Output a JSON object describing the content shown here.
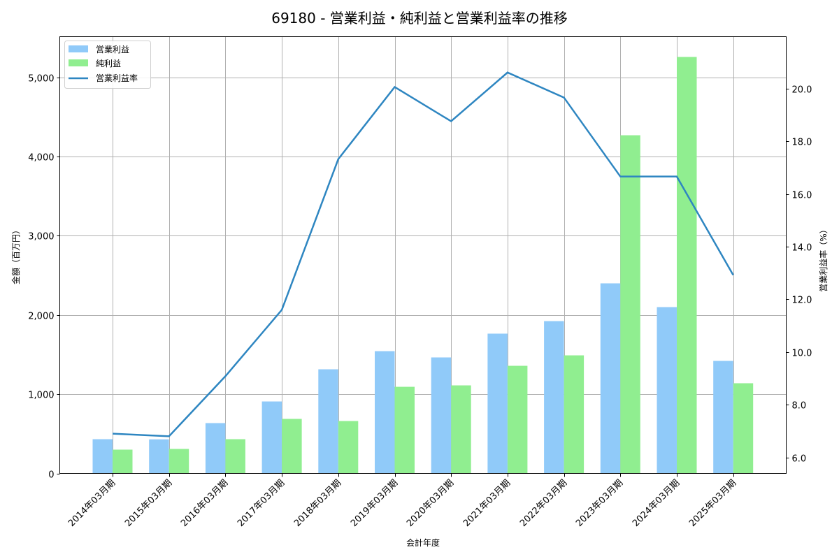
{
  "chart_data": {
    "type": "bar",
    "title": "69180 - 営業利益・純利益と営業利益率の推移",
    "xlabel": "会計年度",
    "ylabel": "金額（百万円）",
    "y2label": "営業利益率（%）",
    "categories": [
      "2014年03月期",
      "2015年03月期",
      "2016年03月期",
      "2017年03月期",
      "2018年03月期",
      "2019年03月期",
      "2020年03月期",
      "2021年03月期",
      "2022年03月期",
      "2023年03月期",
      "2024年03月期",
      "2025年03月期"
    ],
    "series": [
      {
        "name": "営業利益",
        "type": "bar",
        "axis": "left",
        "color": "#90CAF9",
        "values": [
          432,
          430,
          635,
          908,
          1314,
          1543,
          1464,
          1764,
          1922,
          2399,
          2099,
          1420
        ]
      },
      {
        "name": "純利益",
        "type": "bar",
        "axis": "left",
        "color": "#90EE90",
        "values": [
          300,
          309,
          432,
          688,
          661,
          1093,
          1111,
          1358,
          1490,
          4268,
          5256,
          1138
        ]
      },
      {
        "name": "営業利益率",
        "type": "line",
        "axis": "right",
        "color": "#2E86C1",
        "values": [
          6.9,
          6.8,
          9.08,
          11.6,
          17.32,
          20.06,
          18.76,
          20.61,
          19.66,
          16.66,
          16.66,
          12.92
        ]
      }
    ],
    "ylim": [
      0,
      5512
    ],
    "y2lim": [
      5.39,
      21.97
    ],
    "yticks": [
      0,
      1000,
      2000,
      3000,
      4000,
      5000
    ],
    "ytick_labels": [
      "0",
      "1,000",
      "2,000",
      "3,000",
      "4,000",
      "5,000"
    ],
    "y2ticks": [
      6,
      8,
      10,
      12,
      14,
      16,
      18,
      20
    ],
    "y2tick_labels": [
      "6.0",
      "8.0",
      "10.0",
      "12.0",
      "14.0",
      "16.0",
      "18.0",
      "20.0"
    ],
    "grid": true,
    "legend_position": "upper left"
  }
}
